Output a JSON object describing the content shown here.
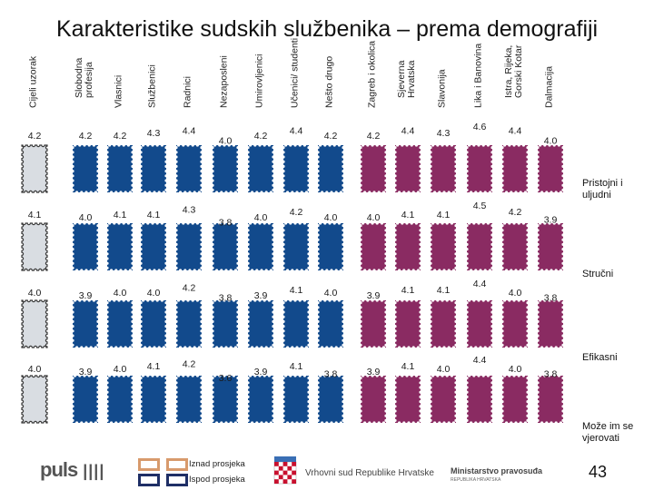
{
  "title": "Karakteristike sudskih službenika – prema demografiji",
  "colors": {
    "total": "#d9dde2",
    "total_border": "#3a3a3a",
    "blue": "#124a8c",
    "purple": "#8a2b62",
    "legend_above": "#d89a6c",
    "legend_below": "#1f2f66"
  },
  "chart_data": {
    "type": "table",
    "columns": [
      {
        "name": "Cijeli uzorak",
        "group": "total"
      },
      {
        "name": "Slobodna profesija",
        "group": "occupation"
      },
      {
        "name": "Vlasnici",
        "group": "occupation"
      },
      {
        "name": "Službenici",
        "group": "occupation"
      },
      {
        "name": "Radnici",
        "group": "occupation"
      },
      {
        "name": "Nezaposleni",
        "group": "occupation"
      },
      {
        "name": "Umirovljenici",
        "group": "occupation"
      },
      {
        "name": "Učenici/ studenti",
        "group": "occupation"
      },
      {
        "name": "Nešto drugo",
        "group": "occupation"
      },
      {
        "name": "Zagreb i okolica",
        "group": "region"
      },
      {
        "name": "Sjeverna Hrvatska",
        "group": "region"
      },
      {
        "name": "Slavonija",
        "group": "region"
      },
      {
        "name": "Lika i Banovina",
        "group": "region"
      },
      {
        "name": "Istra, Rijeka, Gorski Kotar",
        "group": "region"
      },
      {
        "name": "Dalmacija",
        "group": "region"
      }
    ],
    "rows": [
      {
        "label": "Pristojni i uljudni",
        "values": [
          "4.2",
          "4.2",
          "4.2",
          "4.3",
          "4.4",
          "4.0",
          "4.2",
          "4.4",
          "4.2",
          "4.2",
          "4.4",
          "4.3",
          "4.6",
          "4.4",
          "4.0"
        ]
      },
      {
        "label": "Stručni",
        "values": [
          "4.1",
          "4.0",
          "4.1",
          "4.1",
          "4.3",
          "3.8",
          "4.0",
          "4.2",
          "4.0",
          "4.0",
          "4.1",
          "4.1",
          "4.5",
          "4.2",
          "3.9"
        ]
      },
      {
        "label": "Efikasni",
        "values": [
          "4.0",
          "3.9",
          "4.0",
          "4.0",
          "4.2",
          "3.8",
          "3.9",
          "4.1",
          "4.0",
          "3.9",
          "4.1",
          "4.1",
          "4.4",
          "4.0",
          "3.8"
        ]
      },
      {
        "label": "Može im se vjerovati",
        "values": [
          "4.0",
          "3.9",
          "4.0",
          "4.1",
          "4.2",
          "3.6",
          "3.9",
          "4.1",
          "3.8",
          "3.9",
          "4.1",
          "4.0",
          "4.4",
          "4.0",
          "3.8"
        ]
      }
    ],
    "legend": [
      {
        "label": "Iznad prosjeka",
        "meaning": "above average"
      },
      {
        "label": "Ispod prosjeka",
        "meaning": "below average"
      }
    ]
  },
  "footer": {
    "logo": "puls",
    "court": "Vrhovni sud Republike Hrvatske",
    "ministry": "Ministarstvo pravosuđa",
    "ministry_sub": "REPUBLIKA HRVATSKA",
    "page_number": "43"
  }
}
